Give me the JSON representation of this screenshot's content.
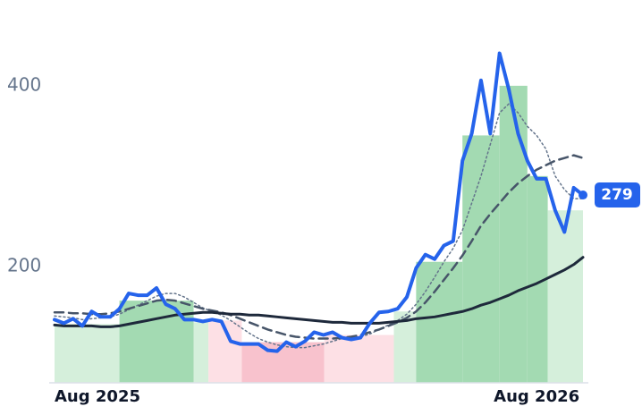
{
  "chart_data": {
    "type": "line",
    "xlim": [
      0,
      57
    ],
    "xticks": [
      {
        "value": 0,
        "label": "Aug 2025"
      },
      {
        "value": 52,
        "label": "Aug 2026"
      }
    ],
    "ylim": [
      71,
      495
    ],
    "yticks": [
      200,
      400
    ],
    "grid": false,
    "bands": [
      {
        "start": 0,
        "end": 7,
        "value": 136,
        "color": "#d5efdb"
      },
      {
        "start": 7,
        "end": 15,
        "value": 162,
        "color": "#a3dab2"
      },
      {
        "start": 15,
        "end": 16.6,
        "value": 138,
        "color": "#d5efdb"
      },
      {
        "start": 16.6,
        "end": 20.2,
        "value": 140,
        "color": "#fde0e5"
      },
      {
        "start": 20.2,
        "end": 29.1,
        "value": 116,
        "color": "#f8c2cd"
      },
      {
        "start": 29.1,
        "end": 36.6,
        "value": 124,
        "color": "#fde0e5"
      },
      {
        "start": 36.6,
        "end": 39,
        "value": 150,
        "color": "#d5efdb"
      },
      {
        "start": 39,
        "end": 44,
        "value": 205,
        "color": "#a3dab2"
      },
      {
        "start": 44,
        "end": 48,
        "value": 345,
        "color": "#a3dab2"
      },
      {
        "start": 48,
        "end": 51,
        "value": 400,
        "color": "#a3dab2"
      },
      {
        "start": 51,
        "end": 53.2,
        "value": 300,
        "color": "#a3dab2"
      },
      {
        "start": 53.2,
        "end": 57,
        "value": 262,
        "color": "#d5efdb"
      }
    ],
    "series": [
      {
        "color": "#2563eb",
        "style": "solid",
        "width": 4,
        "values": [
          141,
          137,
          142,
          134,
          150,
          144,
          144,
          153,
          170,
          168,
          168,
          176,
          158,
          153,
          141,
          141,
          139,
          141,
          139,
          117,
          114,
          114,
          114,
          107,
          106,
          116,
          111,
          117,
          127,
          124,
          127,
          121,
          119,
          121,
          137,
          149,
          150,
          153,
          166,
          198,
          213,
          208,
          223,
          228,
          317,
          347,
          406,
          347,
          436,
          396,
          347,
          317,
          297,
          297,
          262,
          238,
          287,
          279
        ]
      },
      {
        "color": "#64748b",
        "style": "dotted",
        "width": 1.5,
        "values": [
          145,
          144,
          143,
          141,
          142,
          143,
          144,
          147,
          152,
          157,
          162,
          167,
          170,
          170,
          166,
          160,
          154,
          150,
          146,
          140,
          133,
          126,
          120,
          116,
          113,
          111,
          110,
          110,
          112,
          114,
          117,
          120,
          121,
          122,
          125,
          130,
          135,
          140,
          147,
          158,
          172,
          188,
          205,
          220,
          240,
          270,
          300,
          335,
          370,
          380,
          370,
          355,
          345,
          330,
          300,
          285,
          275,
          275
        ]
      },
      {
        "color": "#475569",
        "style": "dashed",
        "width": 2.5,
        "values": [
          149,
          149,
          148,
          148,
          147,
          147,
          148,
          150,
          153,
          156,
          159,
          162,
          163,
          162,
          159,
          156,
          153,
          151,
          149,
          146,
          142,
          138,
          134,
          130,
          127,
          124,
          122,
          121,
          120,
          120,
          120,
          121,
          122,
          124,
          127,
          130,
          134,
          138,
          143,
          150,
          160,
          172,
          185,
          198,
          212,
          228,
          245,
          258,
          270,
          282,
          292,
          300,
          307,
          312,
          317,
          320,
          323,
          320
        ]
      },
      {
        "color": "#1e293b",
        "style": "solid",
        "width": 3,
        "values": [
          135,
          134,
          134,
          134,
          134,
          133,
          133,
          134,
          136,
          138,
          140,
          142,
          144,
          146,
          147,
          148,
          149,
          149,
          148,
          147,
          147,
          146,
          146,
          145,
          144,
          143,
          142,
          141,
          140,
          139,
          138,
          138,
          137,
          137,
          137,
          137,
          138,
          139,
          140,
          142,
          143,
          144,
          146,
          148,
          150,
          153,
          157,
          160,
          164,
          168,
          173,
          177,
          181,
          186,
          191,
          196,
          202,
          210
        ]
      }
    ]
  }
}
